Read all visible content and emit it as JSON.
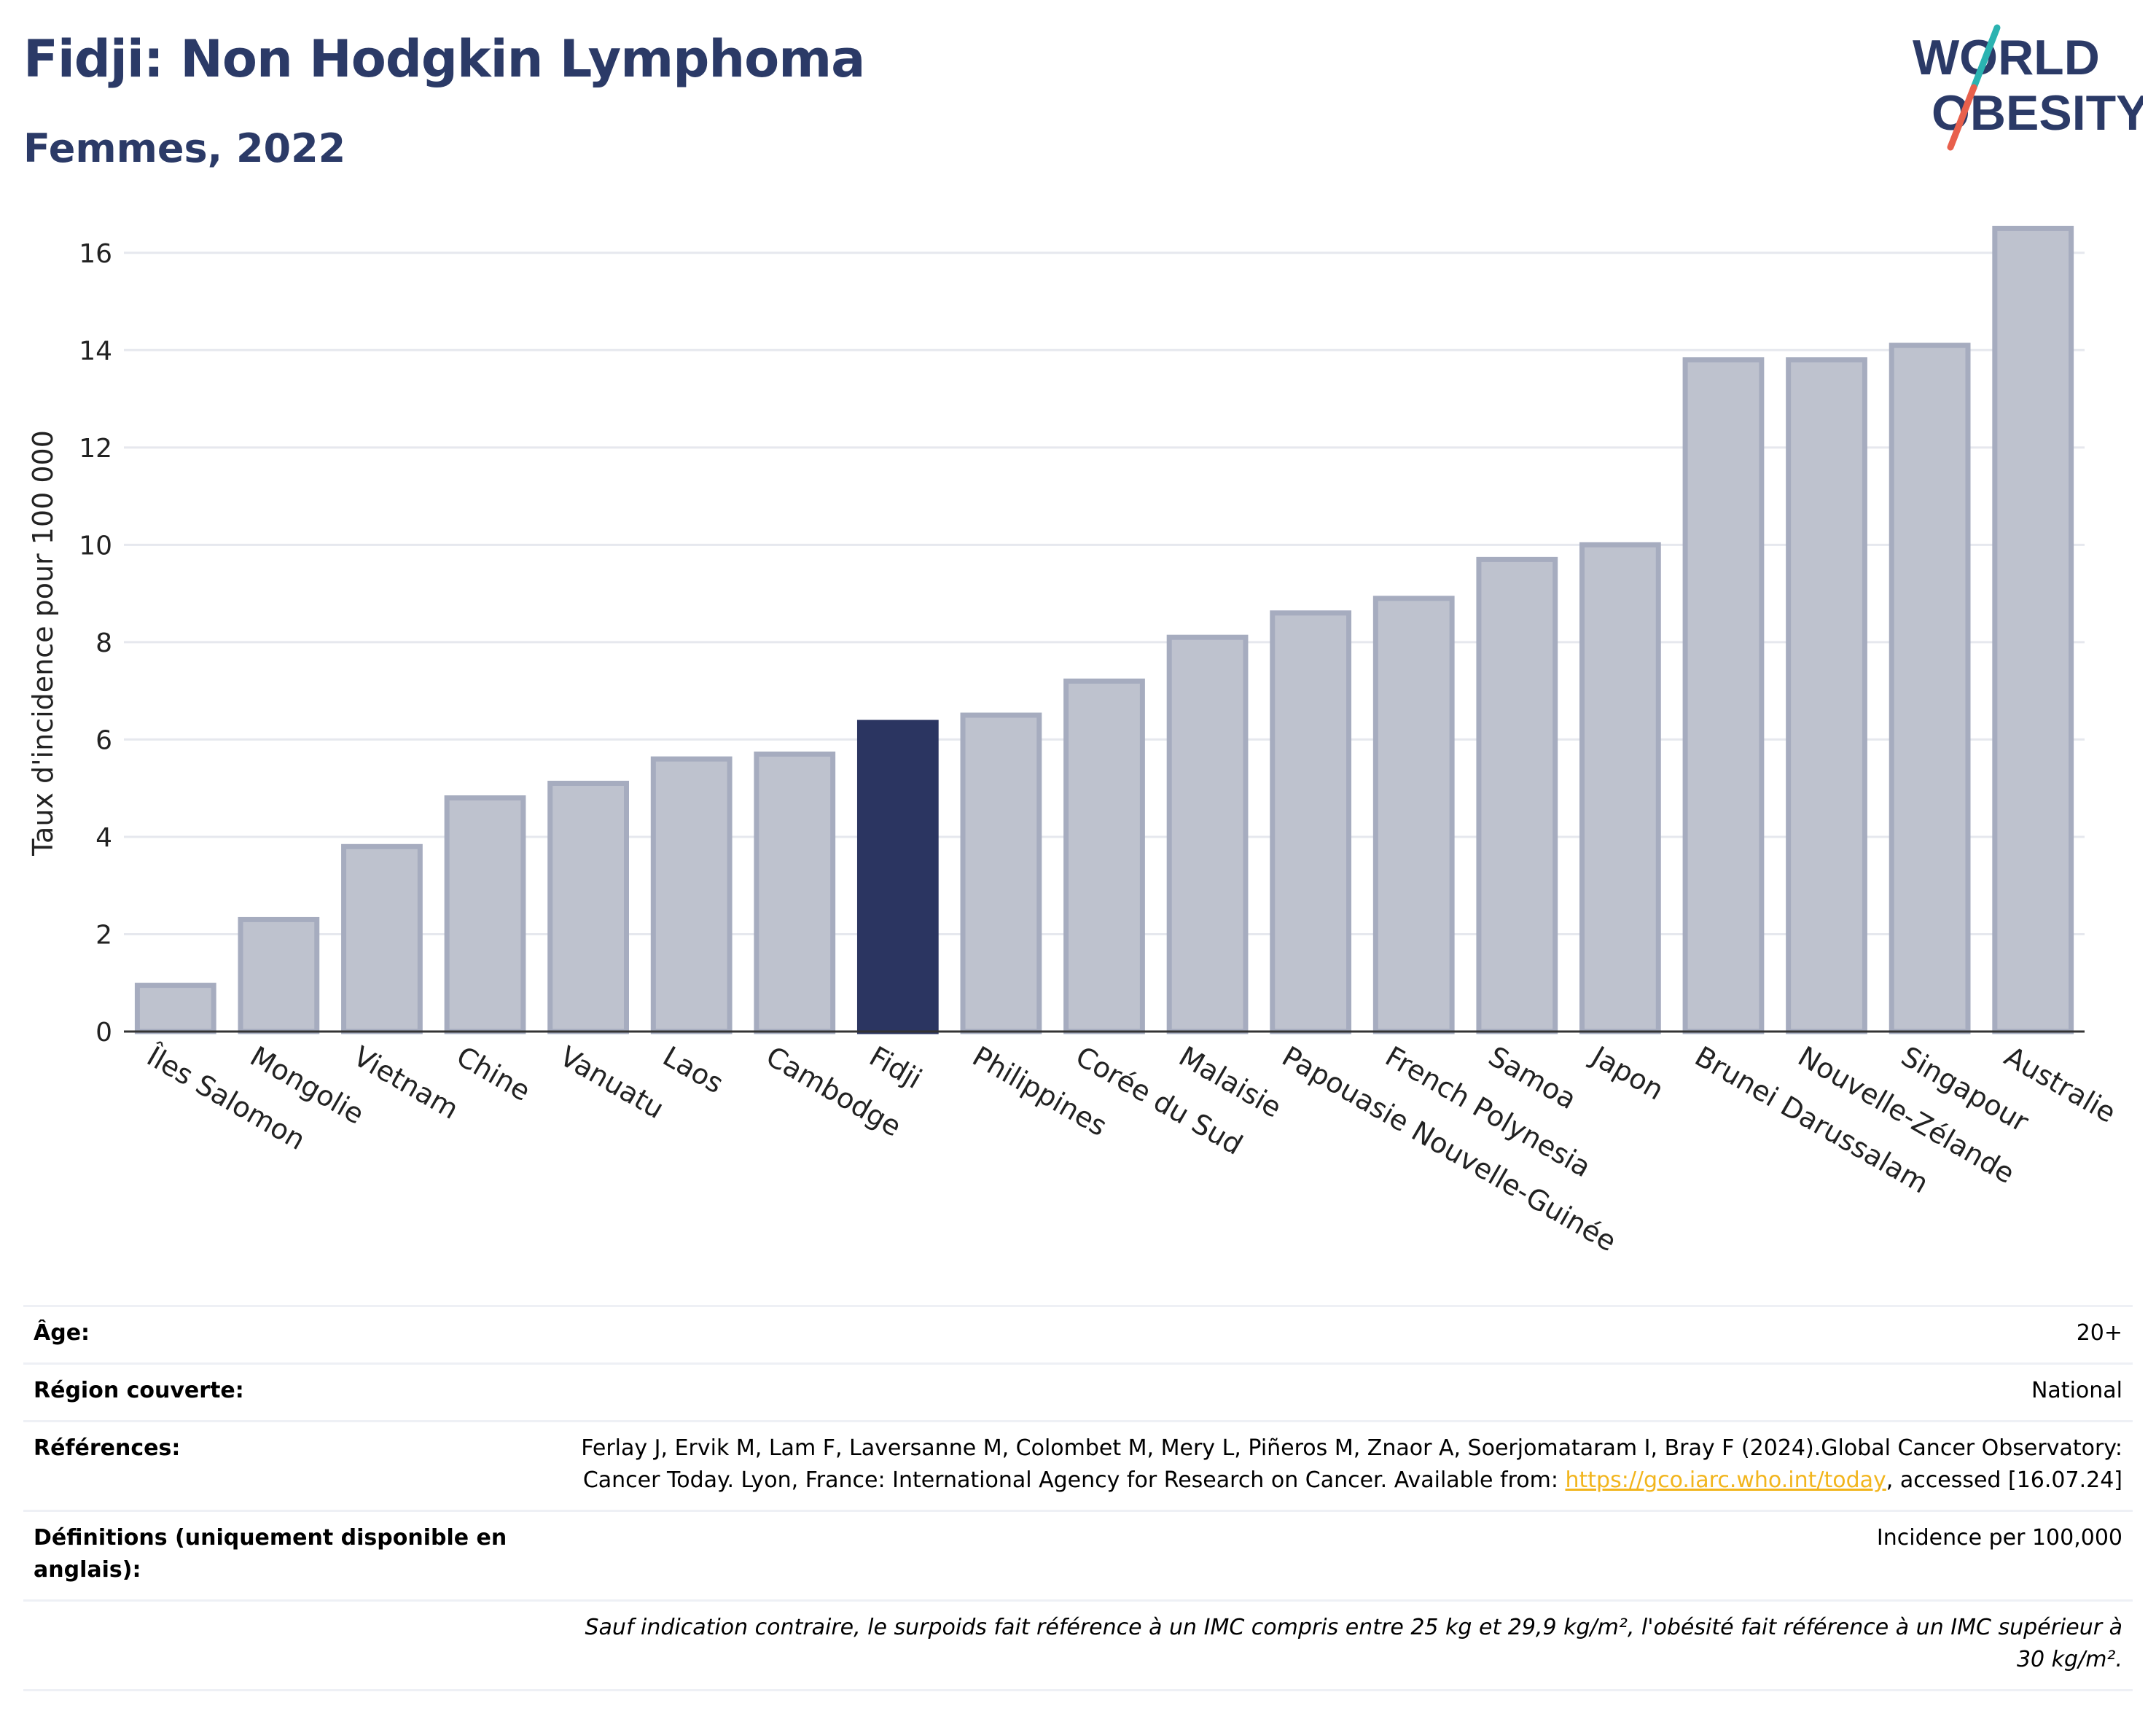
{
  "header": {
    "title": "Fidji: Non Hodgkin Lymphoma",
    "subtitle": "Femmes, 2022",
    "logo_line1": "WORLD",
    "logo_line2": "OBESITY"
  },
  "colors": {
    "title": "#2b3a67",
    "bar": "#bec2ce",
    "bar_border": "#a6acbf",
    "highlight": "#2b3561",
    "grid": "#e6e8ee",
    "axis": "#333333",
    "link": "#f2b51d",
    "logo_teal": "#2bb3b1",
    "logo_red": "#e8604c"
  },
  "chart_data": {
    "type": "bar",
    "categories": [
      "Îles Salomon",
      "Mongolie",
      "Vietnam",
      "Chine",
      "Vanuatu",
      "Laos",
      "Cambodge",
      "Fidji",
      "Philippines",
      "Corée du Sud",
      "Malaisie",
      "Papouasie Nouvelle-Guinée",
      "French Polynesia",
      "Samoa",
      "Japon",
      "Brunei Darussalam",
      "Nouvelle-Zélande",
      "Singapour",
      "Australie"
    ],
    "values": [
      0.95,
      2.3,
      3.8,
      4.8,
      5.1,
      5.6,
      5.7,
      6.35,
      6.5,
      7.2,
      8.1,
      8.6,
      8.9,
      9.7,
      10.0,
      13.8,
      13.8,
      14.1,
      16.5
    ],
    "highlight": "Fidji",
    "ylabel": "Taux d'incidence pour 100 000",
    "xlabel": "",
    "ylim": [
      0,
      17
    ],
    "yticks": [
      0,
      2,
      4,
      6,
      8,
      10,
      12,
      14,
      16
    ],
    "grid": true
  },
  "info": {
    "age_label": "Âge:",
    "age_value": "20+",
    "region_label": "Région couverte:",
    "region_value": "National",
    "references_label": "Références:",
    "references_text": "Ferlay J, Ervik M, Lam F, Laversanne M, Colombet M, Mery L, Piñeros M, Znaor A, Soerjomataram I, Bray F (2024).Global Cancer Observatory: Cancer Today. Lyon, France: International Agency for Research on Cancer. Available from: ",
    "references_link": "https://gco.iarc.who.int/today",
    "references_tail": ", accessed [16.07.24]",
    "definitions_label": "Définitions (uniquement disponible en anglais):",
    "definitions_value": "Incidence per 100,000",
    "note": "Sauf indication contraire, le surpoids fait référence à un IMC compris entre 25 kg et 29,9 kg/m², l'obésité fait référence à un IMC supérieur à 30 kg/m²."
  }
}
